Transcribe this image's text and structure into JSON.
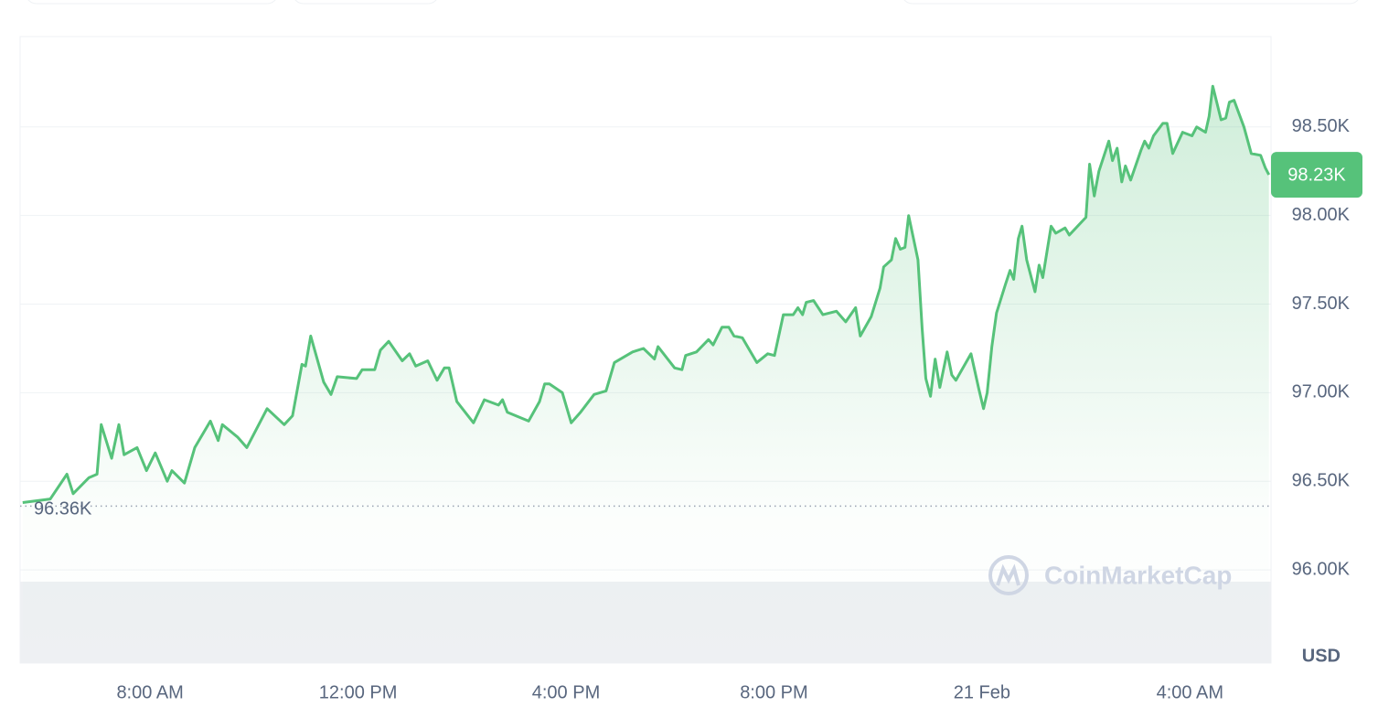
{
  "chart_data": {
    "type": "area",
    "color": "#56c27a",
    "x": [
      5.55,
      6.08,
      6.4,
      6.52,
      6.82,
      6.98,
      7.06,
      7.26,
      7.4,
      7.5,
      7.75,
      7.93,
      8.1,
      8.33,
      8.42,
      8.66,
      8.86,
      9.16,
      9.31,
      9.39,
      9.68,
      9.86,
      10.25,
      10.58,
      10.74,
      10.92,
      10.99,
      11.09,
      11.34,
      11.48,
      11.6,
      11.97,
      12.08,
      12.32,
      12.43,
      12.59,
      12.85,
      12.99,
      13.11,
      13.34,
      13.52,
      13.66,
      13.75,
      13.9,
      14.22,
      14.43,
      14.7,
      14.78,
      14.87,
      15.28,
      15.49,
      15.59,
      15.68,
      15.93,
      16.1,
      16.28,
      16.54,
      16.77,
      16.93,
      17.28,
      17.49,
      17.7,
      17.77,
      18.09,
      18.23,
      18.3,
      18.51,
      18.74,
      18.83,
      19.0,
      19.13,
      19.23,
      19.39,
      19.67,
      19.88,
      20.01,
      20.18,
      20.37,
      20.46,
      20.55,
      20.62,
      20.76,
      20.94,
      21.2,
      21.38,
      21.57,
      21.66,
      21.87,
      22.04,
      22.11,
      22.26,
      22.34,
      22.43,
      22.52,
      22.59,
      22.77,
      22.85,
      22.92,
      23.01,
      23.1,
      23.19,
      23.33,
      23.42,
      23.5,
      23.79,
      23.94,
      24.03,
      24.1,
      24.19,
      24.28,
      24.45,
      24.54,
      24.61,
      24.7,
      24.77,
      24.86,
      25.02,
      25.1,
      25.17,
      25.33,
      25.42,
      25.6,
      25.68,
      26.0,
      26.07,
      26.16,
      26.25,
      26.44,
      26.51,
      26.6,
      26.69,
      26.76,
      26.86,
      27.06,
      27.13,
      27.21,
      27.3,
      27.48,
      27.56,
      27.67,
      27.86,
      28.04,
      28.13,
      28.3,
      28.37,
      28.44,
      28.6,
      28.69,
      28.76,
      28.85,
      29.04,
      29.18,
      29.36,
      29.45,
      29.52
    ],
    "values": [
      96380,
      96400,
      96540,
      96430,
      96520,
      96540,
      96820,
      96630,
      96820,
      96650,
      96690,
      96560,
      96660,
      96500,
      96560,
      96490,
      96690,
      96840,
      96730,
      96820,
      96750,
      96690,
      96910,
      96820,
      96870,
      97160,
      97150,
      97320,
      97060,
      96990,
      97090,
      97080,
      97130,
      97130,
      97240,
      97290,
      97180,
      97220,
      97150,
      97180,
      97070,
      97140,
      97140,
      96950,
      96830,
      96960,
      96930,
      96960,
      96890,
      96840,
      96950,
      97050,
      97050,
      97000,
      96830,
      96890,
      96990,
      97010,
      97170,
      97230,
      97250,
      97190,
      97260,
      97140,
      97130,
      97210,
      97230,
      97300,
      97270,
      97370,
      97370,
      97320,
      97310,
      97170,
      97220,
      97210,
      97440,
      97440,
      97480,
      97440,
      97510,
      97520,
      97440,
      97460,
      97400,
      97480,
      97320,
      97430,
      97590,
      97710,
      97750,
      97870,
      97810,
      97820,
      98000,
      97750,
      97360,
      97080,
      96980,
      97190,
      97030,
      97230,
      97100,
      97070,
      97220,
      97020,
      96910,
      97000,
      97260,
      97450,
      97610,
      97690,
      97640,
      97870,
      97940,
      97750,
      97570,
      97720,
      97650,
      97940,
      97900,
      97930,
      97890,
      97990,
      98290,
      98110,
      98250,
      98420,
      98310,
      98380,
      98190,
      98280,
      98200,
      98370,
      98420,
      98380,
      98450,
      98520,
      98520,
      98350,
      98470,
      98450,
      98500,
      98470,
      98560,
      98730,
      98540,
      98550,
      98640,
      98650,
      98500,
      98350,
      98340,
      98270,
      98230
    ],
    "xlim": [
      5.5,
      29.56
    ],
    "xticks": [
      {
        "value": 8,
        "label": "8:00 AM"
      },
      {
        "value": 12,
        "label": "12:00 PM"
      },
      {
        "value": 16,
        "label": "4:00 PM"
      },
      {
        "value": 20,
        "label": "8:00 PM"
      },
      {
        "value": 24,
        "label": "21 Feb"
      },
      {
        "value": 28,
        "label": "4:00 AM"
      }
    ],
    "ylim": [
      95474,
      99010
    ],
    "yticks": [
      {
        "value": 96000,
        "label": "96.00K"
      },
      {
        "value": 96500,
        "label": "96.50K"
      },
      {
        "value": 97000,
        "label": "97.00K"
      },
      {
        "value": 97500,
        "label": "97.50K"
      },
      {
        "value": 98000,
        "label": "98.00K"
      },
      {
        "value": 98500,
        "label": "98.50K"
      }
    ],
    "grid": true,
    "reference_line": {
      "value": 96360,
      "label": "96.36K"
    },
    "current_price": {
      "value": 98230,
      "label": "98.23K"
    },
    "y_unit": "USD",
    "watermark": "CoinMarketCap"
  }
}
